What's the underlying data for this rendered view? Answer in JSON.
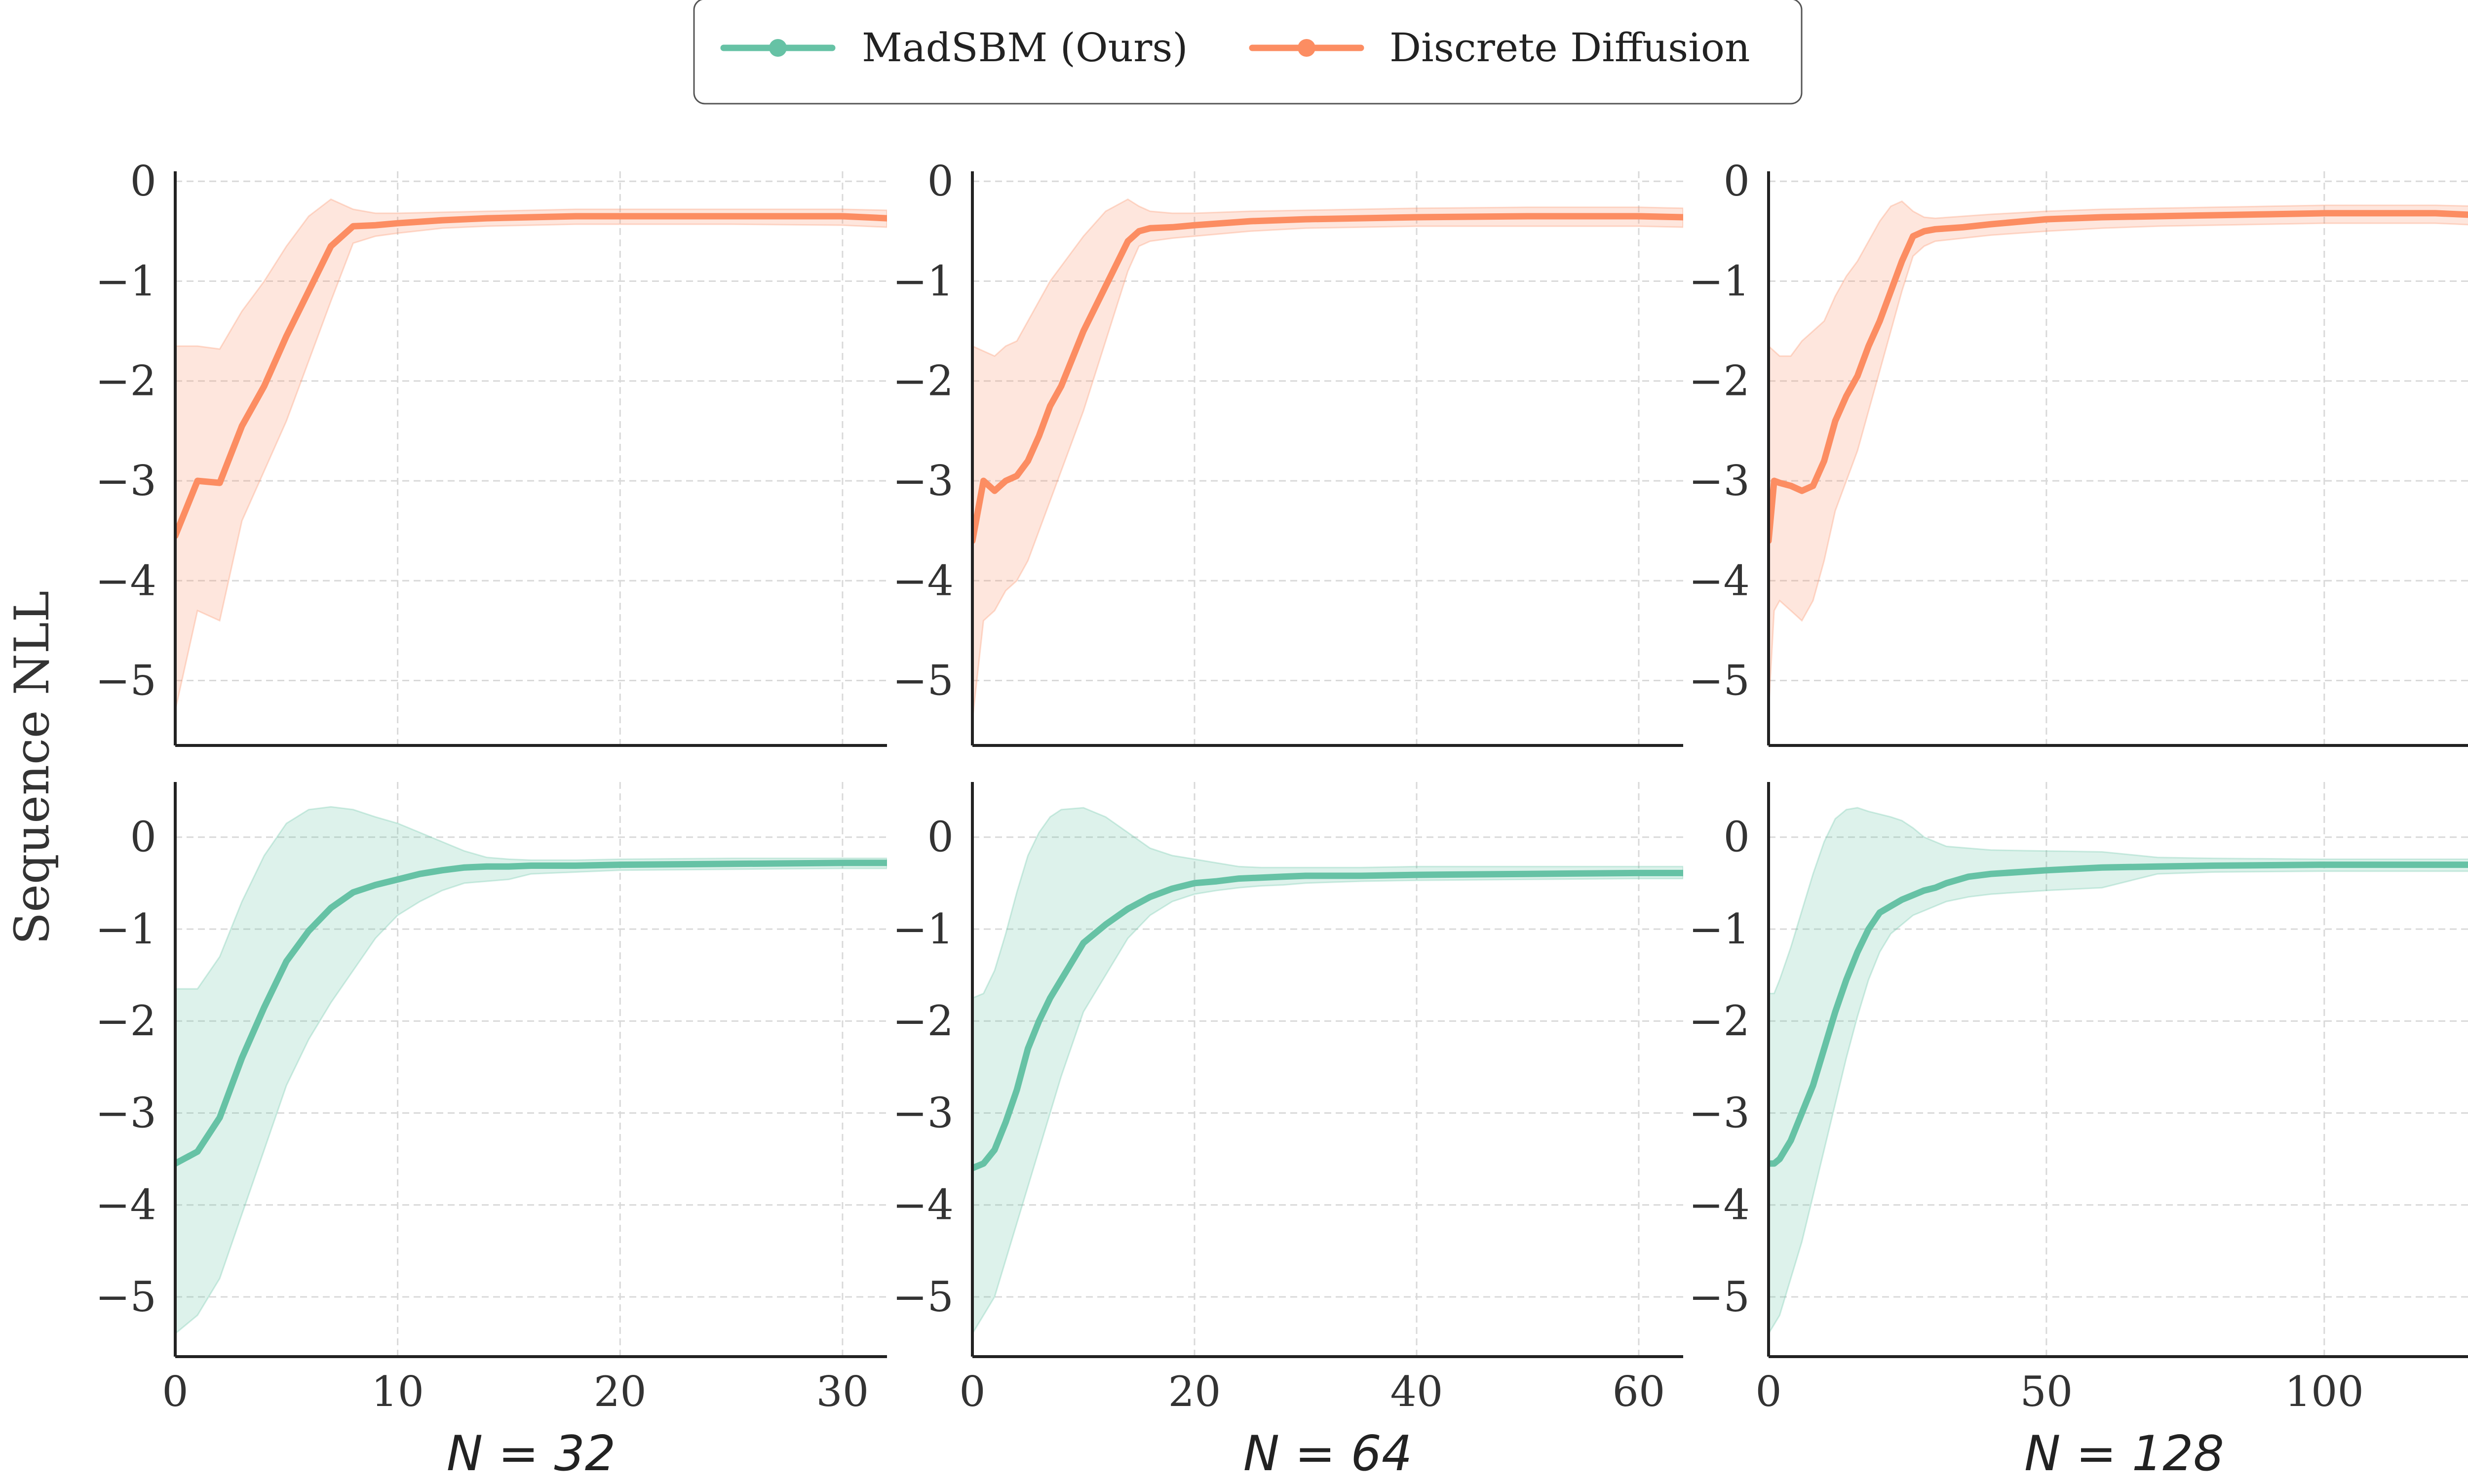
{
  "chart_data": {
    "type": "line",
    "ylabel": "Sequence NLL",
    "legend": {
      "position": "top-center",
      "entries": [
        {
          "label": "MadSBM (Ours)",
          "color": "#66c2a5"
        },
        {
          "label": "Discrete Diffusion",
          "color": "#fc8d62"
        }
      ]
    },
    "grid": true,
    "panels": [
      {
        "id": "diff-32",
        "row": 0,
        "col": 0,
        "series": "Discrete Diffusion",
        "color": "#fc8d62",
        "xlim": [
          0,
          32
        ],
        "ylim": [
          -5.65,
          0.1
        ],
        "xticks": [
          0,
          10,
          20,
          30
        ],
        "yticks": [
          0,
          -1,
          -2,
          -3,
          -4,
          -5
        ],
        "ytick_labels": [
          "0",
          "−1",
          "−2",
          "−3",
          "−4",
          "−5"
        ],
        "x": [
          0,
          1,
          2,
          3,
          4,
          5,
          6,
          7,
          8,
          9,
          10,
          12,
          14,
          16,
          18,
          20,
          25,
          30,
          32
        ],
        "y": [
          -3.55,
          -3.0,
          -3.02,
          -2.45,
          -2.05,
          -1.55,
          -1.1,
          -0.65,
          -0.45,
          -0.44,
          -0.42,
          -0.39,
          -0.37,
          -0.36,
          -0.35,
          -0.35,
          -0.35,
          -0.35,
          -0.37
        ],
        "lower": [
          -5.3,
          -4.3,
          -4.4,
          -3.4,
          -2.9,
          -2.4,
          -1.8,
          -1.2,
          -0.62,
          -0.55,
          -0.52,
          -0.47,
          -0.45,
          -0.44,
          -0.43,
          -0.43,
          -0.43,
          -0.44,
          -0.46
        ],
        "upper": [
          -1.65,
          -1.65,
          -1.68,
          -1.3,
          -1.0,
          -0.65,
          -0.35,
          -0.18,
          -0.28,
          -0.32,
          -0.32,
          -0.31,
          -0.3,
          -0.29,
          -0.28,
          -0.28,
          -0.28,
          -0.28,
          -0.29
        ]
      },
      {
        "id": "diff-64",
        "row": 0,
        "col": 1,
        "series": "Discrete Diffusion",
        "color": "#fc8d62",
        "xlim": [
          0,
          64
        ],
        "ylim": [
          -5.65,
          0.1
        ],
        "xticks": [
          0,
          20,
          40,
          60
        ],
        "yticks": [
          0,
          -1,
          -2,
          -3,
          -4,
          -5
        ],
        "ytick_labels": [
          "0",
          "−1",
          "−2",
          "−3",
          "−4",
          "−5"
        ],
        "x": [
          0,
          1,
          2,
          3,
          4,
          5,
          6,
          7,
          8,
          10,
          12,
          14,
          15,
          16,
          18,
          20,
          25,
          30,
          40,
          50,
          60,
          64
        ],
        "y": [
          -3.6,
          -3.0,
          -3.1,
          -3.0,
          -2.95,
          -2.8,
          -2.55,
          -2.25,
          -2.05,
          -1.5,
          -1.05,
          -0.6,
          -0.5,
          -0.47,
          -0.46,
          -0.44,
          -0.4,
          -0.38,
          -0.36,
          -0.35,
          -0.35,
          -0.36
        ],
        "lower": [
          -5.4,
          -4.4,
          -4.3,
          -4.1,
          -4.0,
          -3.8,
          -3.5,
          -3.2,
          -2.9,
          -2.3,
          -1.6,
          -0.9,
          -0.65,
          -0.6,
          -0.57,
          -0.55,
          -0.5,
          -0.47,
          -0.45,
          -0.45,
          -0.45,
          -0.46
        ],
        "upper": [
          -1.65,
          -1.7,
          -1.75,
          -1.65,
          -1.6,
          -1.4,
          -1.2,
          -1.0,
          -0.85,
          -0.55,
          -0.3,
          -0.18,
          -0.25,
          -0.3,
          -0.32,
          -0.32,
          -0.3,
          -0.29,
          -0.27,
          -0.26,
          -0.26,
          -0.27
        ]
      },
      {
        "id": "diff-128",
        "row": 0,
        "col": 2,
        "series": "Discrete Diffusion",
        "color": "#fc8d62",
        "xlim": [
          0,
          128
        ],
        "ylim": [
          -5.65,
          0.1
        ],
        "xticks": [
          0,
          50,
          100
        ],
        "yticks": [
          0,
          -1,
          -2,
          -3,
          -4,
          -5
        ],
        "ytick_labels": [
          "0",
          "−1",
          "−2",
          "−3",
          "−4",
          "−5"
        ],
        "x": [
          0,
          1,
          2,
          4,
          6,
          8,
          10,
          12,
          14,
          16,
          18,
          20,
          22,
          24,
          26,
          28,
          30,
          35,
          40,
          50,
          60,
          70,
          80,
          90,
          100,
          110,
          120,
          128
        ],
        "y": [
          -3.6,
          -3.0,
          -3.02,
          -3.05,
          -3.1,
          -3.05,
          -2.8,
          -2.4,
          -2.15,
          -1.95,
          -1.65,
          -1.4,
          -1.1,
          -0.8,
          -0.55,
          -0.5,
          -0.48,
          -0.46,
          -0.43,
          -0.38,
          -0.36,
          -0.35,
          -0.34,
          -0.33,
          -0.32,
          -0.32,
          -0.32,
          -0.34
        ],
        "lower": [
          -5.3,
          -4.3,
          -4.2,
          -4.3,
          -4.4,
          -4.2,
          -3.8,
          -3.3,
          -3.0,
          -2.7,
          -2.3,
          -1.9,
          -1.5,
          -1.1,
          -0.75,
          -0.65,
          -0.6,
          -0.57,
          -0.54,
          -0.5,
          -0.47,
          -0.45,
          -0.44,
          -0.43,
          -0.42,
          -0.42,
          -0.42,
          -0.44
        ],
        "upper": [
          -1.65,
          -1.7,
          -1.75,
          -1.75,
          -1.6,
          -1.5,
          -1.4,
          -1.15,
          -0.95,
          -0.8,
          -0.6,
          -0.4,
          -0.25,
          -0.2,
          -0.3,
          -0.36,
          -0.37,
          -0.35,
          -0.33,
          -0.3,
          -0.28,
          -0.27,
          -0.26,
          -0.25,
          -0.24,
          -0.24,
          -0.24,
          -0.25
        ]
      },
      {
        "id": "madsbm-32",
        "row": 1,
        "col": 0,
        "series": "MadSBM (Ours)",
        "color": "#66c2a5",
        "xlim": [
          0,
          32
        ],
        "ylim": [
          -5.65,
          0.6
        ],
        "xticks": [
          0,
          10,
          20,
          30
        ],
        "yticks": [
          0,
          -1,
          -2,
          -3,
          -4,
          -5
        ],
        "ytick_labels": [
          "0",
          "−1",
          "−2",
          "−3",
          "−4",
          "−5"
        ],
        "xtick_labels": [
          "0",
          "10",
          "20",
          "30"
        ],
        "xlabel": "N = 32",
        "x": [
          0,
          1,
          2,
          3,
          4,
          5,
          6,
          7,
          8,
          9,
          10,
          11,
          12,
          13,
          14,
          15,
          16,
          18,
          20,
          25,
          30,
          32
        ],
        "y": [
          -3.55,
          -3.42,
          -3.05,
          -2.4,
          -1.85,
          -1.35,
          -1.02,
          -0.77,
          -0.6,
          -0.52,
          -0.46,
          -0.4,
          -0.36,
          -0.33,
          -0.32,
          -0.32,
          -0.31,
          -0.31,
          -0.3,
          -0.29,
          -0.28,
          -0.28
        ],
        "lower": [
          -5.4,
          -5.2,
          -4.8,
          -4.1,
          -3.4,
          -2.7,
          -2.2,
          -1.8,
          -1.45,
          -1.1,
          -0.85,
          -0.7,
          -0.58,
          -0.5,
          -0.48,
          -0.46,
          -0.4,
          -0.38,
          -0.36,
          -0.35,
          -0.34,
          -0.34
        ],
        "upper": [
          -1.65,
          -1.65,
          -1.3,
          -0.7,
          -0.2,
          0.15,
          0.3,
          0.33,
          0.3,
          0.22,
          0.15,
          0.05,
          -0.05,
          -0.15,
          -0.22,
          -0.24,
          -0.25,
          -0.25,
          -0.24,
          -0.23,
          -0.23,
          -0.23
        ]
      },
      {
        "id": "madsbm-64",
        "row": 1,
        "col": 1,
        "series": "MadSBM (Ours)",
        "color": "#66c2a5",
        "xlim": [
          0,
          64
        ],
        "ylim": [
          -5.65,
          0.6
        ],
        "xticks": [
          0,
          20,
          40,
          60
        ],
        "yticks": [
          0,
          -1,
          -2,
          -3,
          -4,
          -5
        ],
        "ytick_labels": [
          "0",
          "−1",
          "−2",
          "−3",
          "−4",
          "−5"
        ],
        "xtick_labels": [
          "0",
          "20",
          "40",
          "60"
        ],
        "xlabel": "N = 64",
        "x": [
          0,
          1,
          2,
          3,
          4,
          5,
          6,
          7,
          8,
          10,
          12,
          14,
          16,
          18,
          20,
          22,
          24,
          26,
          28,
          30,
          35,
          40,
          50,
          60,
          64
        ],
        "y": [
          -3.6,
          -3.55,
          -3.4,
          -3.1,
          -2.75,
          -2.3,
          -2.0,
          -1.75,
          -1.55,
          -1.15,
          -0.95,
          -0.78,
          -0.65,
          -0.56,
          -0.5,
          -0.48,
          -0.45,
          -0.44,
          -0.43,
          -0.42,
          -0.42,
          -0.41,
          -0.4,
          -0.39,
          -0.39
        ],
        "lower": [
          -5.4,
          -5.2,
          -5.0,
          -4.6,
          -4.2,
          -3.8,
          -3.4,
          -3.0,
          -2.6,
          -1.9,
          -1.5,
          -1.1,
          -0.85,
          -0.7,
          -0.62,
          -0.58,
          -0.55,
          -0.53,
          -0.52,
          -0.5,
          -0.48,
          -0.47,
          -0.46,
          -0.45,
          -0.45
        ],
        "upper": [
          -1.75,
          -1.7,
          -1.45,
          -1.05,
          -0.6,
          -0.2,
          0.05,
          0.22,
          0.3,
          0.32,
          0.22,
          0.05,
          -0.12,
          -0.2,
          -0.24,
          -0.28,
          -0.32,
          -0.33,
          -0.33,
          -0.33,
          -0.33,
          -0.32,
          -0.32,
          -0.32,
          -0.32
        ]
      },
      {
        "id": "madsbm-128",
        "row": 1,
        "col": 2,
        "series": "MadSBM (Ours)",
        "color": "#66c2a5",
        "xlim": [
          0,
          128
        ],
        "ylim": [
          -5.65,
          0.6
        ],
        "xticks": [
          0,
          50,
          100
        ],
        "yticks": [
          0,
          -1,
          -2,
          -3,
          -4,
          -5
        ],
        "ytick_labels": [
          "0",
          "−1",
          "−2",
          "−3",
          "−4",
          "−5"
        ],
        "xtick_labels": [
          "0",
          "50",
          "100"
        ],
        "xlabel": "N = 128",
        "x": [
          0,
          1,
          2,
          4,
          6,
          8,
          10,
          12,
          14,
          16,
          18,
          20,
          22,
          24,
          26,
          28,
          30,
          32,
          36,
          40,
          50,
          60,
          70,
          80,
          100,
          120,
          128
        ],
        "y": [
          -3.55,
          -3.55,
          -3.5,
          -3.3,
          -3.0,
          -2.7,
          -2.3,
          -1.9,
          -1.55,
          -1.25,
          -1.0,
          -0.82,
          -0.75,
          -0.68,
          -0.63,
          -0.58,
          -0.55,
          -0.5,
          -0.43,
          -0.4,
          -0.36,
          -0.33,
          -0.32,
          -0.31,
          -0.3,
          -0.3,
          -0.3
        ],
        "lower": [
          -5.4,
          -5.3,
          -5.2,
          -4.8,
          -4.4,
          -3.9,
          -3.4,
          -2.9,
          -2.4,
          -1.95,
          -1.55,
          -1.25,
          -1.05,
          -0.95,
          -0.85,
          -0.8,
          -0.75,
          -0.7,
          -0.65,
          -0.62,
          -0.58,
          -0.55,
          -0.4,
          -0.38,
          -0.37,
          -0.37,
          -0.37
        ],
        "upper": [
          -1.7,
          -1.7,
          -1.55,
          -1.2,
          -0.8,
          -0.4,
          -0.05,
          0.2,
          0.3,
          0.32,
          0.28,
          0.25,
          0.22,
          0.18,
          0.1,
          0.0,
          -0.05,
          -0.1,
          -0.12,
          -0.14,
          -0.15,
          -0.16,
          -0.22,
          -0.23,
          -0.24,
          -0.24,
          -0.24
        ]
      }
    ]
  }
}
